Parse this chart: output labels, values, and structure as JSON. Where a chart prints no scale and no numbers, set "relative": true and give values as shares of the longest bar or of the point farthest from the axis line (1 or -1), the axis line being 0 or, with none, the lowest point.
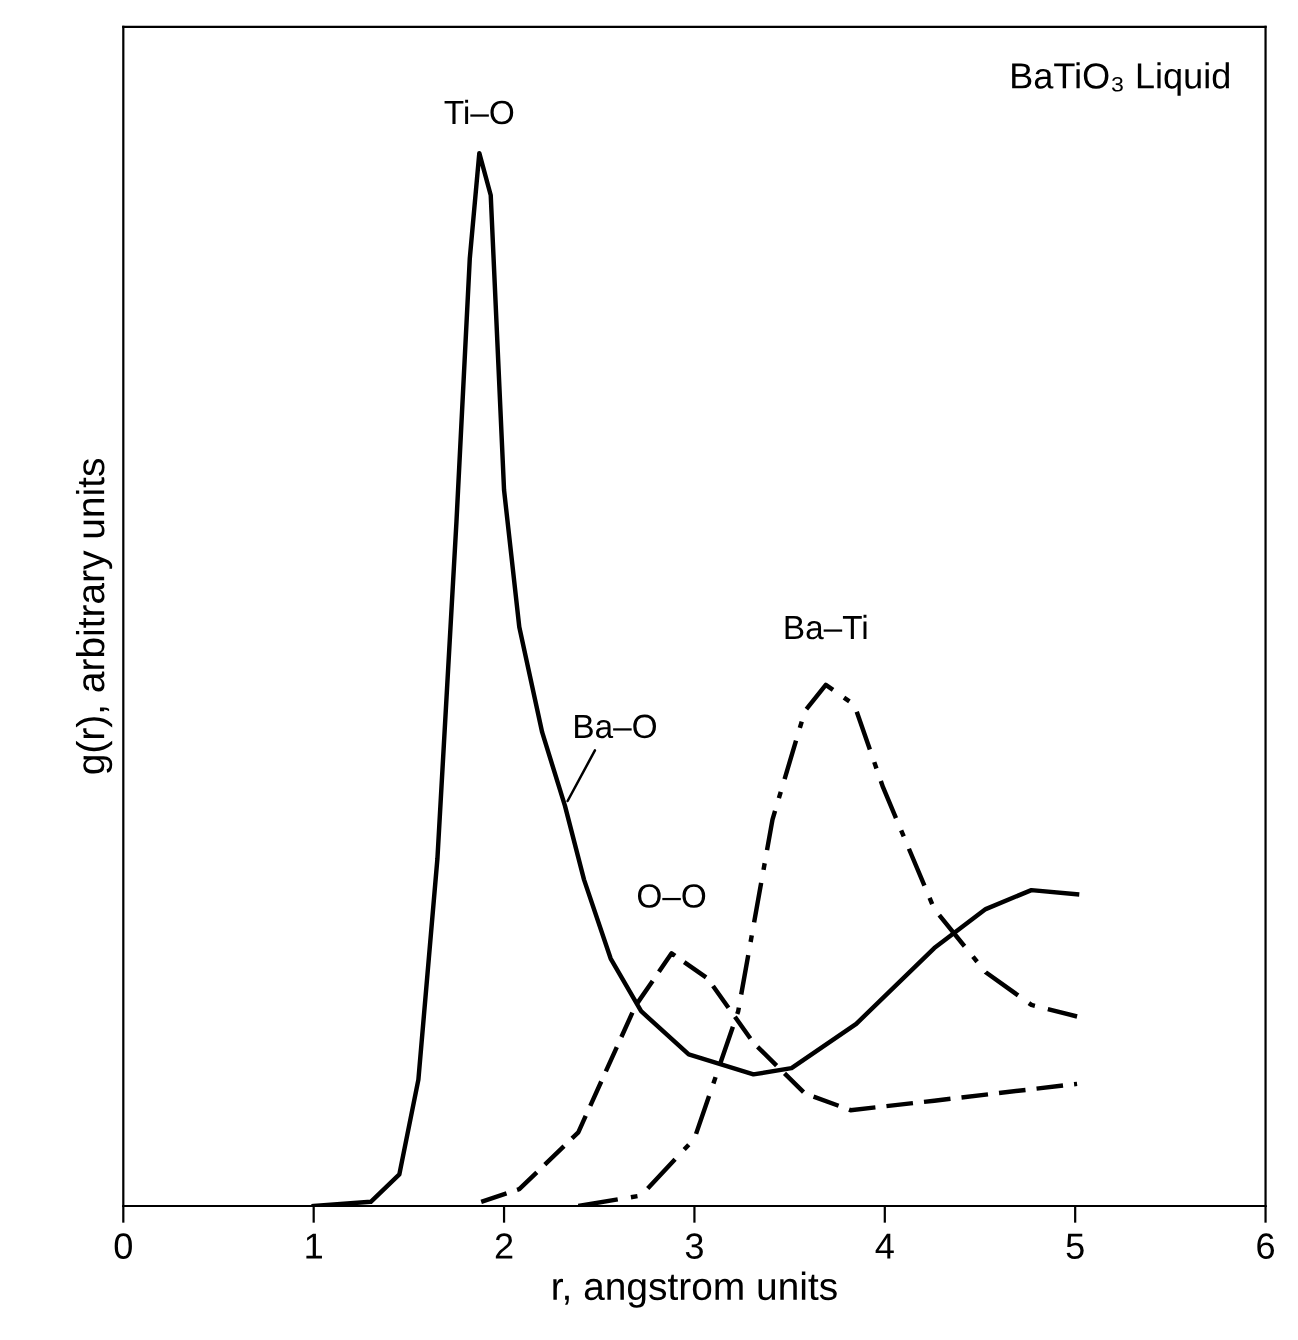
{
  "chart_data": {
    "type": "line",
    "relative": true,
    "xlabel": "r, angstrom units",
    "ylabel": "g(r), arbitrary units",
    "xlim": [
      0,
      6
    ],
    "xticks": [
      0,
      1,
      2,
      3,
      4,
      5,
      6
    ],
    "grid": false,
    "legend": false,
    "marker": "none",
    "annotations": [
      "BaTiO₃ Liquid",
      {
        "text": "Ti–O",
        "x": 1.87,
        "y": 1.0
      },
      {
        "text": "Ba–O",
        "x": 2.32,
        "y": 0.38
      },
      {
        "text": "O–O",
        "x": 2.88,
        "y": 0.24
      },
      {
        "text": "Ba–Ti",
        "x": 3.69,
        "y": 0.495
      }
    ],
    "series": [
      {
        "color": "#000000",
        "line_style": "solid",
        "x": [
          1.0,
          1.3,
          1.45,
          1.55,
          1.65,
          1.75,
          1.82,
          1.87,
          1.93,
          2.0,
          2.08,
          2.2,
          2.32,
          2.42,
          2.56,
          2.72,
          2.97,
          3.31,
          3.51,
          3.85,
          4.26,
          4.53,
          4.77,
          5.01
        ],
        "values": [
          0,
          0.004,
          0.03,
          0.12,
          0.33,
          0.65,
          0.9,
          1.0,
          0.96,
          0.68,
          0.55,
          0.45,
          0.38,
          0.31,
          0.235,
          0.185,
          0.144,
          0.125,
          0.131,
          0.173,
          0.245,
          0.282,
          0.3,
          0.296
        ]
      },
      {
        "color": "#000000",
        "line_style": "dashed",
        "x": [
          1.88,
          2.08,
          2.39,
          2.69,
          2.88,
          3.07,
          3.31,
          3.58,
          3.82,
          4.26,
          5.01
        ],
        "values": [
          0.004,
          0.016,
          0.07,
          0.19,
          0.24,
          0.216,
          0.155,
          0.107,
          0.091,
          0.1,
          0.116
        ]
      },
      {
        "color": "#000000",
        "line_style": "dashdot",
        "x": [
          2.39,
          2.72,
          3.0,
          3.23,
          3.41,
          3.58,
          3.69,
          3.84,
          3.99,
          4.26,
          4.53,
          4.77,
          5.01
        ],
        "values": [
          0,
          0.01,
          0.064,
          0.185,
          0.367,
          0.47,
          0.495,
          0.476,
          0.398,
          0.282,
          0.222,
          0.191,
          0.18
        ]
      }
    ]
  }
}
